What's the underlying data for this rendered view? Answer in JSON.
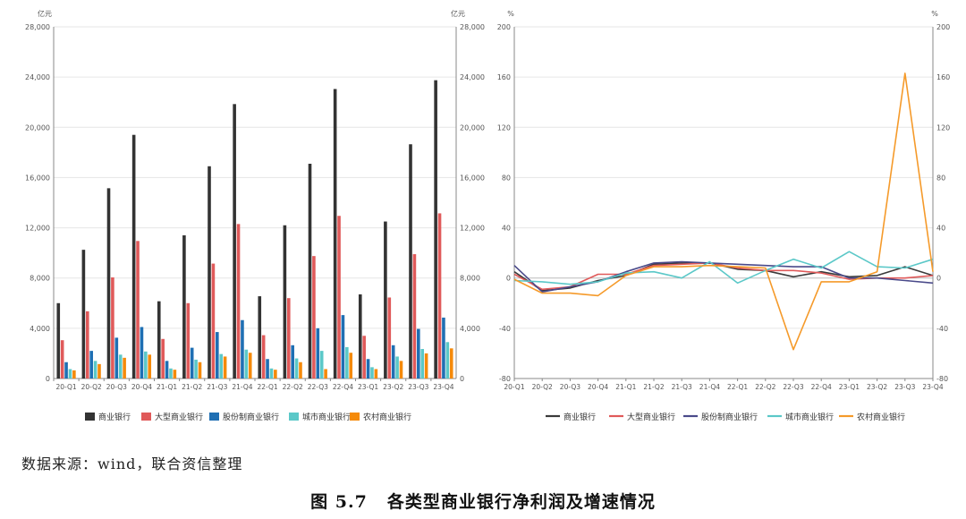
{
  "chart_data": [
    {
      "type": "bar",
      "y_unit_label": "亿元",
      "ylim": [
        0,
        28000
      ],
      "yticks": [
        0,
        4000,
        8000,
        12000,
        16000,
        20000,
        24000,
        28000
      ],
      "ytick_labels": [
        "0",
        "4,000",
        "8,000",
        "12,000",
        "16,000",
        "20,000",
        "24,000",
        "28,000"
      ],
      "grid": true,
      "legend_position": "bottom",
      "categories": [
        "20-Q1",
        "20-Q2",
        "20-Q3",
        "20-Q4",
        "21-Q1",
        "21-Q2",
        "21-Q3",
        "21-Q4",
        "22-Q1",
        "22-Q2",
        "22-Q3",
        "22-Q4",
        "23-Q1",
        "23-Q2",
        "23-Q3",
        "23-Q4"
      ],
      "series": [
        {
          "name": "商业银行",
          "color": "#333333",
          "values": [
            6000,
            10250,
            15150,
            19400,
            6150,
            11400,
            16900,
            21850,
            6550,
            12200,
            17100,
            23050,
            6700,
            12500,
            18650,
            23750
          ]
        },
        {
          "name": "大型商业银行",
          "color": "#e05a5a",
          "values": [
            3050,
            5350,
            8050,
            10950,
            3150,
            6000,
            9150,
            12300,
            3450,
            6400,
            9750,
            12950,
            3400,
            6450,
            9900,
            13150
          ]
        },
        {
          "name": "股份制商业银行",
          "color": "#1f6fb3",
          "values": [
            1300,
            2200,
            3250,
            4100,
            1400,
            2450,
            3700,
            4650,
            1550,
            2650,
            4000,
            5050,
            1550,
            2650,
            3950,
            4850
          ]
        },
        {
          "name": "城市商业银行",
          "color": "#5bc8c8",
          "values": [
            750,
            1400,
            1900,
            2150,
            800,
            1500,
            1950,
            2300,
            800,
            1600,
            2200,
            2500,
            900,
            1750,
            2350,
            2900
          ]
        },
        {
          "name": "农村商业银行",
          "color": "#f58a0a",
          "values": [
            650,
            1150,
            1650,
            1900,
            700,
            1300,
            1750,
            2050,
            700,
            1300,
            750,
            2050,
            750,
            1400,
            2000,
            2400
          ]
        }
      ]
    },
    {
      "type": "line",
      "y_unit_label": "%",
      "ylim": [
        -80,
        200
      ],
      "yticks": [
        -80,
        -40,
        0,
        40,
        80,
        120,
        160,
        200
      ],
      "grid": true,
      "legend_position": "bottom",
      "categories": [
        "20-Q1",
        "20-Q2",
        "20-Q3",
        "20-Q4",
        "21-Q1",
        "21-Q2",
        "21-Q3",
        "21-Q4",
        "22-Q1",
        "22-Q2",
        "22-Q3",
        "22-Q4",
        "23-Q1",
        "23-Q2",
        "23-Q3",
        "23-Q4"
      ],
      "series": [
        {
          "name": "商业银行",
          "color": "#3a3a3a",
          "values": [
            5,
            -10,
            -8,
            -2,
            2,
            11,
            12,
            12,
            7,
            6,
            1,
            5,
            1,
            2,
            9,
            2
          ]
        },
        {
          "name": "大型商业银行",
          "color": "#e05a5a",
          "values": [
            3,
            -9,
            -7,
            3,
            3,
            10,
            11,
            12,
            8,
            6,
            6,
            4,
            -1,
            0,
            0,
            2
          ]
        },
        {
          "name": "股份制商业银行",
          "color": "#4a4a8a",
          "values": [
            10,
            -11,
            -7,
            -3,
            5,
            12,
            13,
            12,
            11,
            10,
            9,
            9,
            0,
            0,
            -2,
            -4
          ]
        },
        {
          "name": "城市商业银行",
          "color": "#5bc8c8",
          "values": [
            -2,
            -3,
            -5,
            -3,
            4,
            5,
            0,
            13,
            -4,
            6,
            15,
            8,
            21,
            9,
            8,
            15
          ]
        },
        {
          "name": "农村商业银行",
          "color": "#f59a2a",
          "values": [
            -1,
            -12,
            -12,
            -14,
            2,
            9,
            9,
            10,
            9,
            8,
            -57,
            -3,
            -3,
            5,
            163,
            5
          ]
        }
      ]
    }
  ],
  "source_text": "数据来源：wind，联合资信整理",
  "caption": {
    "number": "图 5.7",
    "title": "各类型商业银行净利润及增速情况"
  }
}
